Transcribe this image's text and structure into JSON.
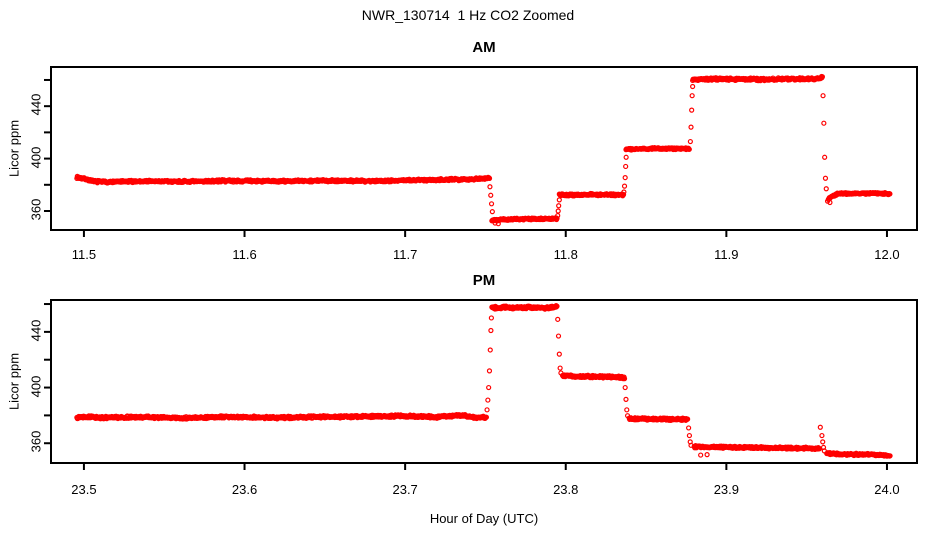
{
  "title": "NWR_130714  1 Hz CO2 Zoomed",
  "chart_data": {
    "type": "scatter",
    "marker": "open-circle",
    "point_color": "#ff0000",
    "axis_color": "#000000",
    "background": "#ffffff",
    "suptitle": "NWR_130714  1 Hz CO2 Zoomed",
    "xlabel": "Hour of Day (UTC)",
    "ylabel": "Licor ppm",
    "grid": false,
    "legend": false,
    "panels": [
      {
        "title": "AM",
        "xlim": [
          11.4795,
          12.0187
        ],
        "ylim": [
          345.5,
          469.9
        ],
        "xticks": [
          11.5,
          11.6,
          11.7,
          11.8,
          11.9,
          12.0
        ],
        "xtick_labels": [
          "11.5",
          "11.6",
          "11.7",
          "11.8",
          "11.9",
          "12.0"
        ],
        "yticks_all": [
          360,
          380,
          400,
          420,
          440,
          460
        ],
        "yticks_labeled": [
          360,
          400,
          440
        ],
        "ytick_labels": [
          "360",
          "400",
          "440"
        ],
        "seed": 7,
        "segments": [
          {
            "noise": 1.0,
            "profile": [
              [
                11.4956,
                385.8
              ],
              [
                11.5,
                384.8
              ],
              [
                11.506,
                382.6
              ],
              [
                11.515,
                382.2
              ],
              [
                11.54,
                382.8
              ],
              [
                11.565,
                382.4
              ],
              [
                11.59,
                383.1
              ],
              [
                11.62,
                382.7
              ],
              [
                11.65,
                383.2
              ],
              [
                11.68,
                382.9
              ],
              [
                11.7,
                383.4
              ],
              [
                11.72,
                383.9
              ],
              [
                11.735,
                384.1
              ],
              [
                11.745,
                384.6
              ],
              [
                11.7525,
                385.3
              ]
            ]
          },
          {
            "noise": 0.9,
            "profile": [
              [
                11.754,
                353.2
              ],
              [
                11.77,
                353.8
              ],
              [
                11.7945,
                354.1
              ]
            ]
          },
          {
            "noise": 0.9,
            "profile": [
              [
                11.796,
                372.2
              ],
              [
                11.816,
                372.6
              ],
              [
                11.836,
                372.4
              ]
            ]
          },
          {
            "noise": 0.9,
            "profile": [
              [
                11.8375,
                407.2
              ],
              [
                11.857,
                407.7
              ],
              [
                11.877,
                407.5
              ]
            ]
          },
          {
            "noise": 1.1,
            "profile": [
              [
                11.879,
                460.3
              ],
              [
                11.9,
                460.9
              ],
              [
                11.92,
                460.4
              ],
              [
                11.94,
                460.8
              ],
              [
                11.955,
                460.9
              ],
              [
                11.9595,
                461.8
              ]
            ]
          },
          {
            "noise": 0.9,
            "profile": [
              [
                11.9635,
                369.5
              ],
              [
                11.966,
                371.5
              ],
              [
                11.97,
                373.2
              ],
              [
                11.98,
                373.3
              ],
              [
                11.99,
                373.6
              ],
              [
                12.0019,
                373.2
              ]
            ]
          }
        ],
        "extra_points": [
          [
            11.7528,
            378.5
          ],
          [
            11.7533,
            372
          ],
          [
            11.7538,
            365.5
          ],
          [
            11.7543,
            359.5
          ],
          [
            11.756,
            350.8
          ],
          [
            11.758,
            350.3
          ],
          [
            11.795,
            356.5
          ],
          [
            11.7953,
            360
          ],
          [
            11.7956,
            364
          ],
          [
            11.796,
            368.5
          ],
          [
            11.8362,
            374.5
          ],
          [
            11.8366,
            379
          ],
          [
            11.837,
            385.5
          ],
          [
            11.8373,
            394
          ],
          [
            11.8376,
            401
          ],
          [
            11.8776,
            413
          ],
          [
            11.878,
            424
          ],
          [
            11.8784,
            437
          ],
          [
            11.8787,
            448
          ],
          [
            11.879,
            455
          ],
          [
            11.9598,
            462.5
          ],
          [
            11.9602,
            448
          ],
          [
            11.9607,
            427
          ],
          [
            11.9612,
            401
          ],
          [
            11.9617,
            385
          ],
          [
            11.9622,
            377
          ],
          [
            11.963,
            367.5
          ],
          [
            11.9645,
            366.5
          ]
        ]
      },
      {
        "title": "PM",
        "xlim": [
          23.4795,
          24.0187
        ],
        "ylim": [
          345.8,
          462.9
        ],
        "xticks": [
          23.5,
          23.6,
          23.7,
          23.8,
          23.9,
          24.0
        ],
        "xtick_labels": [
          "23.5",
          "23.6",
          "23.7",
          "23.8",
          "23.9",
          "24.0"
        ],
        "yticks_all": [
          360,
          380,
          400,
          420,
          440,
          460
        ],
        "yticks_labeled": [
          360,
          400,
          440
        ],
        "ytick_labels": [
          "360",
          "400",
          "440"
        ],
        "seed": 13,
        "segments": [
          {
            "noise": 1.0,
            "profile": [
              [
                23.4956,
                378.6
              ],
              [
                23.5,
                379.2
              ],
              [
                23.51,
                378.4
              ],
              [
                23.54,
                378.8
              ],
              [
                23.56,
                378.1
              ],
              [
                23.59,
                378.9
              ],
              [
                23.62,
                378.4
              ],
              [
                23.65,
                379.0
              ],
              [
                23.68,
                379.3
              ],
              [
                23.7,
                379.6
              ],
              [
                23.72,
                378.9
              ],
              [
                23.735,
                380.1
              ],
              [
                23.745,
                378.2
              ],
              [
                23.7505,
                378.6
              ]
            ]
          },
          {
            "noise": 1.2,
            "profile": [
              [
                23.754,
                457.3
              ],
              [
                23.76,
                457.6
              ],
              [
                23.77,
                457.2
              ],
              [
                23.78,
                457.5
              ],
              [
                23.79,
                457.3
              ],
              [
                23.7945,
                458.4
              ]
            ]
          },
          {
            "noise": 1.0,
            "profile": [
              [
                23.798,
                408.4
              ],
              [
                23.81,
                408.0
              ],
              [
                23.825,
                407.8
              ],
              [
                23.8365,
                407.3
              ]
            ]
          },
          {
            "noise": 1.0,
            "profile": [
              [
                23.8395,
                377.6
              ],
              [
                23.855,
                377.4
              ],
              [
                23.876,
                377.1
              ]
            ]
          },
          {
            "noise": 1.0,
            "profile": [
              [
                23.88,
                357.6
              ],
              [
                23.9,
                357.2
              ],
              [
                23.92,
                356.8
              ],
              [
                23.94,
                356.5
              ],
              [
                23.954,
                356.2
              ],
              [
                23.958,
                356.0
              ]
            ]
          },
          {
            "noise": 0.9,
            "profile": [
              [
                23.9625,
                352.8
              ],
              [
                23.97,
                352.2
              ],
              [
                23.98,
                352.0
              ],
              [
                23.99,
                351.8
              ],
              [
                24.0019,
                351.2
              ]
            ]
          }
        ],
        "extra_points": [
          [
            23.751,
            384
          ],
          [
            23.7515,
            391
          ],
          [
            23.752,
            400
          ],
          [
            23.7525,
            412
          ],
          [
            23.753,
            427
          ],
          [
            23.7534,
            441
          ],
          [
            23.7537,
            450
          ],
          [
            23.795,
            449
          ],
          [
            23.7955,
            437
          ],
          [
            23.796,
            424
          ],
          [
            23.7965,
            414
          ],
          [
            23.797,
            410.5
          ],
          [
            23.837,
            400
          ],
          [
            23.8375,
            391.5
          ],
          [
            23.838,
            384
          ],
          [
            23.8385,
            379.8
          ],
          [
            23.8765,
            371
          ],
          [
            23.877,
            365.5
          ],
          [
            23.8775,
            361
          ],
          [
            23.878,
            358.5
          ],
          [
            23.884,
            351.5
          ],
          [
            23.888,
            351.8
          ],
          [
            23.9585,
            371.5
          ],
          [
            23.9595,
            365.5
          ],
          [
            23.96,
            361
          ],
          [
            23.9605,
            357
          ],
          [
            23.961,
            354.5
          ]
        ]
      }
    ]
  }
}
